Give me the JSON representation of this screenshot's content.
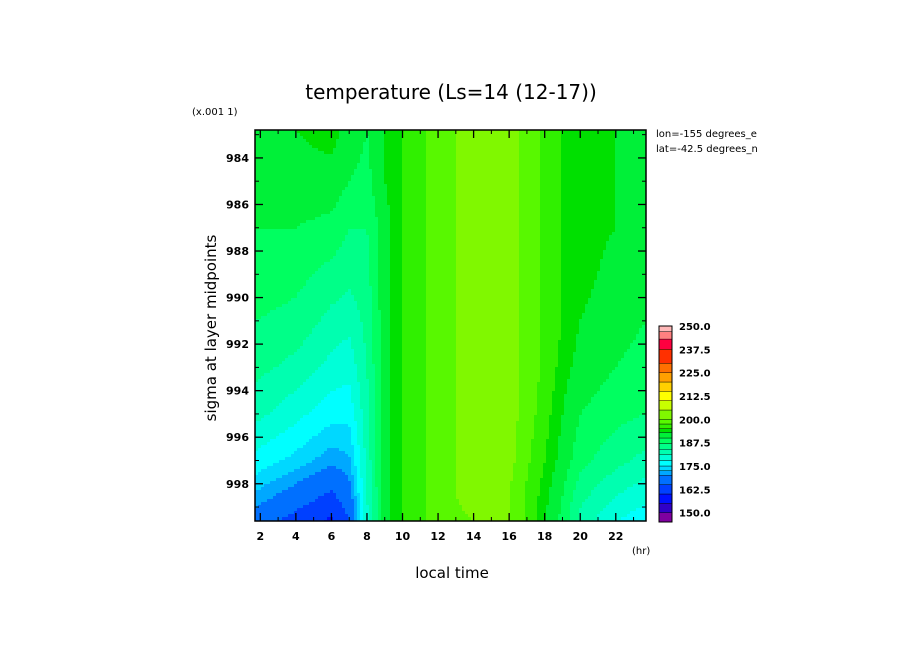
{
  "chart_data": {
    "type": "heatmap",
    "title": "temperature (Ls=14 (12-17))",
    "xlabel": "local time",
    "xunit": "(hr)",
    "ylabel": "sigma at layer midpoints",
    "yunit": "(x.001 1)",
    "annotations": [
      "lon=-155 degrees_e",
      "lat=-42.5 degrees_n"
    ],
    "x_ticks": [
      "2",
      "4",
      "6",
      "8",
      "10",
      "12",
      "14",
      "16",
      "18",
      "20",
      "22"
    ],
    "y_ticks": [
      "984",
      "986",
      "988",
      "990",
      "992",
      "994",
      "996",
      "998"
    ],
    "xlim": [
      1.7,
      23.7
    ],
    "ylim": [
      982.8,
      999.6
    ],
    "colorbar_labels": [
      "250.0",
      "237.5",
      "225.0",
      "212.5",
      "200.0",
      "187.5",
      "175.0",
      "162.5",
      "150.0"
    ],
    "colorbar_range": [
      145,
      250
    ],
    "x": [
      1.7,
      4,
      6,
      7,
      8,
      9,
      10,
      11,
      12,
      14,
      16,
      17,
      18,
      19,
      20,
      22,
      23.7
    ],
    "y": [
      982.8,
      985,
      987,
      989,
      991,
      993,
      995,
      997,
      998.5,
      999.6
    ],
    "z": [
      [
        192,
        193,
        194,
        192,
        190,
        193,
        195,
        197,
        199,
        201,
        201,
        199,
        197,
        195,
        194,
        193,
        192
      ],
      [
        191,
        192,
        192,
        190,
        189,
        193,
        195,
        197,
        199,
        201,
        201,
        199,
        197,
        195,
        194,
        193,
        192
      ],
      [
        190,
        190,
        189,
        187,
        187,
        192,
        195,
        197,
        199,
        201,
        201,
        199,
        197,
        195,
        194,
        193,
        192
      ],
      [
        189,
        188,
        186,
        185,
        186,
        192,
        195,
        197,
        199,
        201,
        201,
        199,
        197,
        195,
        194,
        192,
        191
      ],
      [
        187,
        186,
        183,
        182,
        185,
        192,
        195,
        197,
        199,
        201,
        201,
        199,
        197,
        195,
        193,
        191,
        190
      ],
      [
        185,
        183,
        180,
        179,
        184,
        192,
        195,
        197,
        199,
        201,
        201,
        199,
        197,
        194,
        192,
        190,
        189
      ],
      [
        182,
        179,
        176,
        176,
        183,
        192,
        195,
        197,
        199,
        201,
        201,
        199,
        196,
        193,
        190,
        188,
        187
      ],
      [
        177,
        174,
        171,
        172,
        182,
        192,
        195,
        197,
        199,
        201,
        201,
        198,
        195,
        192,
        188,
        185,
        183
      ],
      [
        172,
        168,
        164,
        168,
        181,
        192,
        195,
        197,
        199,
        201,
        200,
        197,
        194,
        190,
        185,
        181,
        179
      ],
      [
        168,
        163,
        159,
        165,
        180,
        192,
        195,
        197,
        199,
        200,
        200,
        197,
        193,
        189,
        183,
        178,
        176
      ]
    ],
    "color_levels": [
      {
        "min": 145.0,
        "color": "#7f00a0"
      },
      {
        "min": 150.0,
        "color": "#3000c8"
      },
      {
        "min": 155.0,
        "color": "#0010ff"
      },
      {
        "min": 160.0,
        "color": "#0040ff"
      },
      {
        "min": 165.0,
        "color": "#0070ff"
      },
      {
        "min": 170.0,
        "color": "#00a8ff"
      },
      {
        "min": 172.5,
        "color": "#00d8ff"
      },
      {
        "min": 175.0,
        "color": "#00ffff"
      },
      {
        "min": 178.0,
        "color": "#00ffd8"
      },
      {
        "min": 181.0,
        "color": "#00ffb0"
      },
      {
        "min": 184.0,
        "color": "#00ff88"
      },
      {
        "min": 187.0,
        "color": "#00ff60"
      },
      {
        "min": 190.0,
        "color": "#00f038"
      },
      {
        "min": 193.0,
        "color": "#00e000"
      },
      {
        "min": 195.0,
        "color": "#30f000"
      },
      {
        "min": 197.5,
        "color": "#58f800"
      },
      {
        "min": 200.0,
        "color": "#80f800"
      },
      {
        "min": 205.0,
        "color": "#c8ff00"
      },
      {
        "min": 210.0,
        "color": "#ffff00"
      },
      {
        "min": 215.0,
        "color": "#ffd000"
      },
      {
        "min": 220.0,
        "color": "#ffa000"
      },
      {
        "min": 225.0,
        "color": "#ff7000"
      },
      {
        "min": 230.0,
        "color": "#ff3000"
      },
      {
        "min": 237.5,
        "color": "#ff0040"
      },
      {
        "min": 243.0,
        "color": "#ff8080"
      },
      {
        "min": 247.0,
        "color": "#ffb8b8"
      }
    ]
  }
}
